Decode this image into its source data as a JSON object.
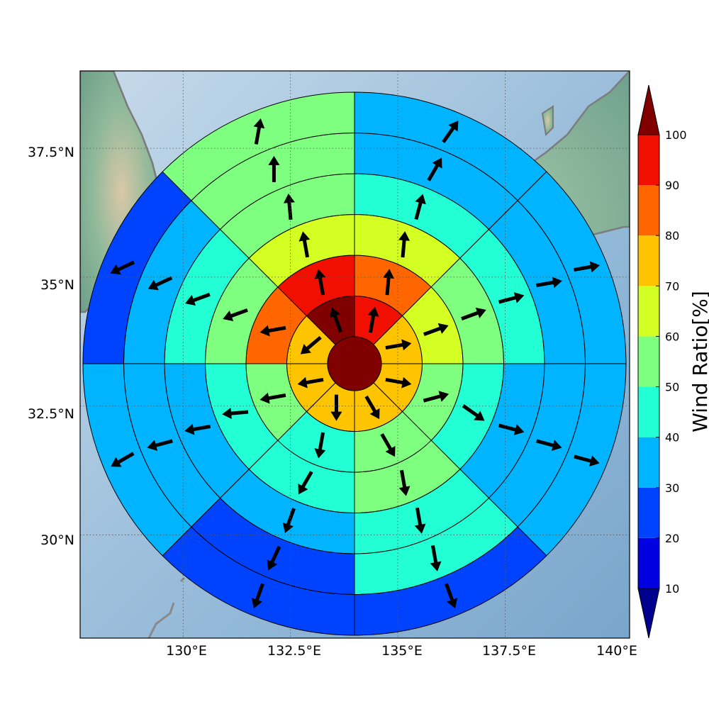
{
  "map": {
    "lon_range": [
      127.6,
      140.4
    ],
    "lat_range": [
      28.0,
      39.0
    ],
    "center": {
      "lon": 133.9,
      "lat": 33.5
    },
    "grid_lons": [
      130.0,
      132.5,
      135.0,
      137.5
    ],
    "grid_lats": [
      30.0,
      32.5,
      35.0,
      37.5
    ]
  },
  "axes": {
    "x_tick_labels": [
      "130°E",
      "132.5°E",
      "135°E",
      "137.5°E",
      "140°E"
    ],
    "y_tick_labels": [
      "37.5°N",
      "35°N",
      "32.5°N",
      "30°N"
    ]
  },
  "colorbar": {
    "title": "Wind Ratio[%]",
    "tick_labels": [
      "10",
      "20",
      "30",
      "40",
      "50",
      "60",
      "70",
      "80",
      "90",
      "100"
    ],
    "colors": [
      "#00008f",
      "#0000e0",
      "#0043ff",
      "#00b4ff",
      "#22ffd4",
      "#7fff7f",
      "#d4ff22",
      "#ffc400",
      "#ff6600",
      "#f00f00",
      "#800000"
    ]
  },
  "chart_data": {
    "type": "heatmap",
    "description_unit": "Wind Ratio [%] by ring and sector around storm center",
    "rings": [
      1,
      2,
      3,
      4,
      5,
      6
    ],
    "sector_count": 8,
    "center_value": 100,
    "ring_values": [
      [
        95,
        75,
        75,
        75,
        75,
        75,
        75,
        100
      ],
      [
        85,
        65,
        55,
        55,
        45,
        55,
        85,
        95
      ],
      [
        65,
        55,
        45,
        55,
        45,
        45,
        55,
        65
      ],
      [
        45,
        45,
        35,
        45,
        35,
        35,
        45,
        55
      ],
      [
        35,
        35,
        35,
        45,
        25,
        35,
        35,
        55
      ],
      [
        35,
        35,
        35,
        25,
        25,
        35,
        25,
        55
      ]
    ],
    "vectors": {
      "direction_note": "arrow direction in degrees (0=east, 90=north)",
      "ring_dirs": [
        [
          80,
          10,
          -10,
          -60,
          -90,
          -170,
          -140,
          110
        ],
        [
          85,
          20,
          15,
          -60,
          -100,
          -170,
          -170,
          100
        ],
        [
          85,
          20,
          -35,
          -80,
          -120,
          -175,
          -160,
          100
        ],
        [
          75,
          15,
          -15,
          -80,
          -110,
          -170,
          -160,
          95
        ],
        [
          60,
          10,
          -15,
          -80,
          -115,
          -165,
          -155,
          90
        ],
        [
          55,
          10,
          -15,
          -70,
          -110,
          -150,
          -155,
          80
        ]
      ]
    }
  }
}
